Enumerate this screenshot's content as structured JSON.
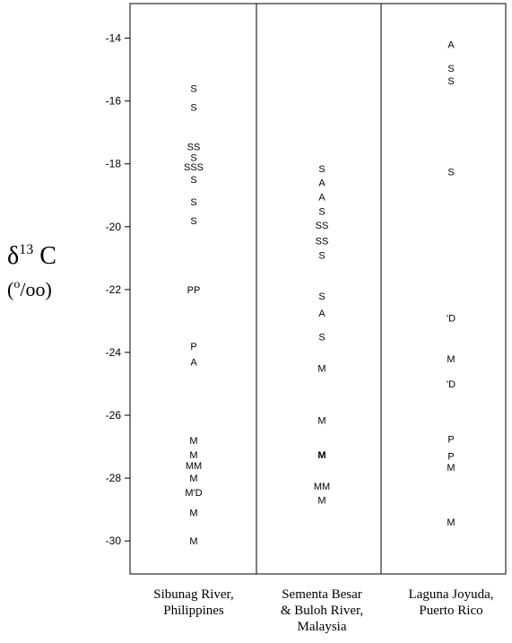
{
  "chart_data": {
    "type": "scatter",
    "ylabel_main": "δ",
    "ylabel_sup": "13",
    "ylabel_element": " C",
    "ylabel_unit_open": "(",
    "ylabel_unit_sup": "o",
    "ylabel_unit_rest": "/oo)",
    "yticks": [
      -14,
      -16,
      -18,
      -20,
      -22,
      -24,
      -26,
      -28,
      -30
    ],
    "ylim": [
      -31.05,
      -12.9
    ],
    "grid": false,
    "categories": [
      [
        "Sibunag River,",
        "Philippines"
      ],
      [
        "Sementa Besar",
        "& Buloh River,",
        "Malaysia"
      ],
      [
        "Laguna Joyuda,",
        "Puerto Rico"
      ]
    ],
    "points": [
      {
        "category": 0,
        "dx": 0,
        "y": -15.6,
        "label": "S"
      },
      {
        "category": 0,
        "dx": 0,
        "y": -16.2,
        "label": "S"
      },
      {
        "category": 0,
        "dx": 0,
        "y": -17.45,
        "label": "SS"
      },
      {
        "category": 0,
        "dx": 0,
        "y": -17.8,
        "label": "S"
      },
      {
        "category": 0,
        "dx": 0,
        "y": -18.1,
        "label": "SSS"
      },
      {
        "category": 0,
        "dx": 0,
        "y": -18.5,
        "label": "S"
      },
      {
        "category": 0,
        "dx": 0,
        "y": -19.2,
        "label": "S"
      },
      {
        "category": 0,
        "dx": 0,
        "y": -19.8,
        "label": "S"
      },
      {
        "category": 0,
        "dx": 0,
        "y": -22.0,
        "label": "PP"
      },
      {
        "category": 0,
        "dx": 0,
        "y": -23.8,
        "label": "P"
      },
      {
        "category": 0,
        "dx": 0,
        "y": -24.3,
        "label": "A"
      },
      {
        "category": 0,
        "dx": 0,
        "y": -26.8,
        "label": "M"
      },
      {
        "category": 0,
        "dx": 0,
        "y": -27.25,
        "label": "M"
      },
      {
        "category": 0,
        "dx": 0,
        "y": -27.6,
        "label": "MM"
      },
      {
        "category": 0,
        "dx": 0,
        "y": -28.0,
        "label": "M"
      },
      {
        "category": 0,
        "dx": 0,
        "y": -28.45,
        "label": "M'D"
      },
      {
        "category": 0,
        "dx": 0,
        "y": -29.1,
        "label": "M"
      },
      {
        "category": 0,
        "dx": 0,
        "y": -30.0,
        "label": "M"
      },
      {
        "category": 1,
        "dx": 0,
        "y": -18.15,
        "label": "S"
      },
      {
        "category": 1,
        "dx": 0,
        "y": -18.6,
        "label": "A"
      },
      {
        "category": 1,
        "dx": 0,
        "y": -19.05,
        "label": "A"
      },
      {
        "category": 1,
        "dx": 0,
        "y": -19.5,
        "label": "S"
      },
      {
        "category": 1,
        "dx": 0,
        "y": -19.95,
        "label": "SS"
      },
      {
        "category": 1,
        "dx": 0,
        "y": -20.45,
        "label": "SS"
      },
      {
        "category": 1,
        "dx": 0,
        "y": -20.9,
        "label": "S"
      },
      {
        "category": 1,
        "dx": 0,
        "y": -22.2,
        "label": "S"
      },
      {
        "category": 1,
        "dx": 0,
        "y": -22.75,
        "label": "A"
      },
      {
        "category": 1,
        "dx": 0,
        "y": -23.5,
        "label": "S"
      },
      {
        "category": 1,
        "dx": 0,
        "y": -24.5,
        "label": "M"
      },
      {
        "category": 1,
        "dx": 0,
        "y": -26.15,
        "label": "M"
      },
      {
        "category": 1,
        "dx": 0,
        "y": -27.25,
        "label": "M",
        "bold": true
      },
      {
        "category": 1,
        "dx": 0,
        "y": -28.25,
        "label": "MM"
      },
      {
        "category": 1,
        "dx": 0,
        "y": -28.7,
        "label": "M"
      },
      {
        "category": 2,
        "dx": 0,
        "y": -14.2,
        "label": "A"
      },
      {
        "category": 2,
        "dx": 0,
        "y": -14.95,
        "label": "S"
      },
      {
        "category": 2,
        "dx": 0,
        "y": -15.35,
        "label": "S"
      },
      {
        "category": 2,
        "dx": 0,
        "y": -18.25,
        "label": "S"
      },
      {
        "category": 2,
        "dx": 0,
        "y": -22.9,
        "label": "'D"
      },
      {
        "category": 2,
        "dx": 0,
        "y": -24.2,
        "label": "M"
      },
      {
        "category": 2,
        "dx": 0,
        "y": -25.0,
        "label": "'D"
      },
      {
        "category": 2,
        "dx": 0,
        "y": -26.75,
        "label": "P"
      },
      {
        "category": 2,
        "dx": 0,
        "y": -27.3,
        "label": "P"
      },
      {
        "category": 2,
        "dx": 0,
        "y": -27.65,
        "label": "M"
      },
      {
        "category": 2,
        "dx": 0,
        "y": -29.4,
        "label": "M"
      }
    ]
  }
}
